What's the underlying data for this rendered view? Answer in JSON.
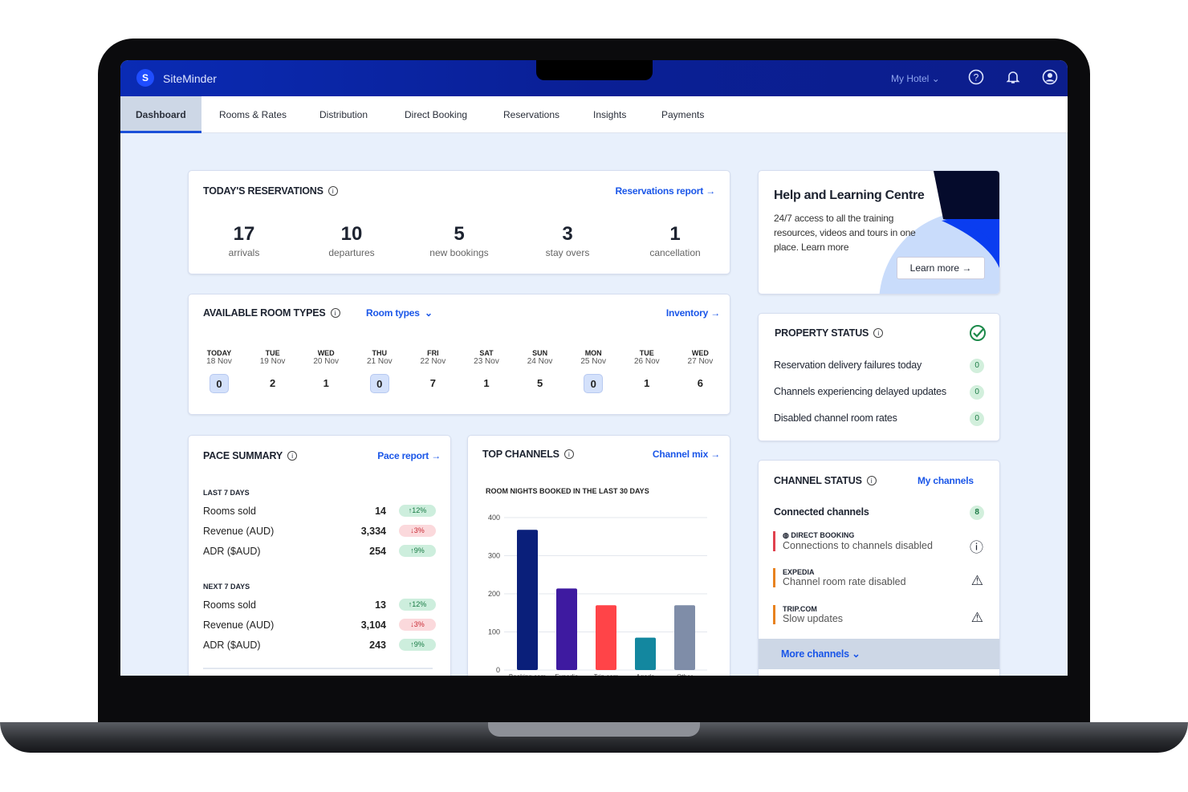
{
  "header": {
    "brand": "SiteMinder",
    "logo": "S",
    "hotel": "My Hotel",
    "icons": [
      "help-icon",
      "bell-icon",
      "user-icon"
    ]
  },
  "nav": {
    "tabs": [
      "Dashboard",
      "Rooms & Rates",
      "Distribution",
      "Direct Booking",
      "Reservations",
      "Insights",
      "Payments"
    ],
    "active": "Dashboard"
  },
  "reservations": {
    "title": "TODAY'S RESERVATIONS",
    "link": "Reservations report",
    "stats": [
      {
        "value": "17",
        "label": "arrivals"
      },
      {
        "value": "10",
        "label": "departures"
      },
      {
        "value": "5",
        "label": "new bookings"
      },
      {
        "value": "3",
        "label": "stay overs"
      },
      {
        "value": "1",
        "label": "cancellation"
      }
    ]
  },
  "rooms": {
    "title": "AVAILABLE ROOM TYPES",
    "dropdown": "Room types",
    "link": "Inventory",
    "days": [
      {
        "name": "TODAY",
        "date": "18 Nov",
        "value": "0"
      },
      {
        "name": "TUE",
        "date": "19 Nov",
        "value": "2"
      },
      {
        "name": "WED",
        "date": "20 Nov",
        "value": "1"
      },
      {
        "name": "THU",
        "date": "21 Nov",
        "value": "0"
      },
      {
        "name": "FRI",
        "date": "22 Nov",
        "value": "7"
      },
      {
        "name": "SAT",
        "date": "23 Nov",
        "value": "1"
      },
      {
        "name": "SUN",
        "date": "24 Nov",
        "value": "5"
      },
      {
        "name": "MON",
        "date": "25 Nov",
        "value": "0"
      },
      {
        "name": "TUE",
        "date": "26 Nov",
        "value": "1"
      },
      {
        "name": "WED",
        "date": "27 Nov",
        "value": "6"
      }
    ]
  },
  "pace": {
    "title": "PACE SUMMARY",
    "link": "Pace report",
    "groups": [
      {
        "label": "LAST 7 DAYS",
        "rows": [
          {
            "label": "Rooms sold",
            "value": "14",
            "change": "12%",
            "dir": "up"
          },
          {
            "label": "Revenue (AUD)",
            "value": "3,334",
            "change": "3%",
            "dir": "down"
          },
          {
            "label": "ADR ($AUD)",
            "value": "254",
            "change": "9%",
            "dir": "up"
          }
        ]
      },
      {
        "label": "NEXT 7 DAYS",
        "rows": [
          {
            "label": "Rooms sold",
            "value": "13",
            "change": "12%",
            "dir": "up"
          },
          {
            "label": "Revenue (AUD)",
            "value": "3,104",
            "change": "3%",
            "dir": "down"
          },
          {
            "label": "ADR ($AUD)",
            "value": "243",
            "change": "9%",
            "dir": "up"
          }
        ]
      }
    ]
  },
  "channels": {
    "title": "TOP CHANNELS",
    "link": "Channel mix"
  },
  "chart_data": {
    "type": "bar",
    "title": "ROOM NIGHTS BOOKED IN THE LAST 30 DAYS",
    "categories": [
      "Booking.com",
      "Expedia",
      "Trip.com",
      "Agoda",
      "Other"
    ],
    "values": [
      368,
      214,
      170,
      85,
      170
    ],
    "colors": [
      "#0a1f7a",
      "#3e1aa0",
      "#ff4448",
      "#13879f",
      "#7f8da8"
    ],
    "ylim": [
      0,
      400
    ],
    "yticks": [
      0,
      100,
      200,
      300,
      400
    ],
    "grid": true
  },
  "help": {
    "title": "Help and Learning Centre",
    "text": "24/7 access to all the training resources, videos and tours in one place. Learn more",
    "button": "Learn more"
  },
  "property": {
    "title": "PROPERTY STATUS",
    "status": "ok",
    "rows": [
      {
        "label": "Reservation delivery failures today",
        "value": "0"
      },
      {
        "label": "Channels experiencing delayed updates",
        "value": "0"
      },
      {
        "label": "Disabled channel room rates",
        "value": "0"
      }
    ]
  },
  "channelStatus": {
    "title": "CHANNEL STATUS",
    "link": "My channels",
    "connected_label": "Connected channels",
    "connected": "8",
    "items": [
      {
        "name": "DIRECT BOOKING",
        "desc": "Connections to channels disabled",
        "icon": "alert-circle-icon",
        "color": "#e0414e"
      },
      {
        "name": "EXPEDIA",
        "desc": "Channel room rate disabled",
        "icon": "warning-icon",
        "color": "#e8821f"
      },
      {
        "name": "TRIP.COM",
        "desc": "Slow updates",
        "icon": "warning-icon",
        "color": "#e8821f"
      }
    ],
    "more": "More channels"
  },
  "colors": {
    "header": "#0a2bb4",
    "accent": "#1a56e8",
    "background": "#e8f0fc"
  }
}
